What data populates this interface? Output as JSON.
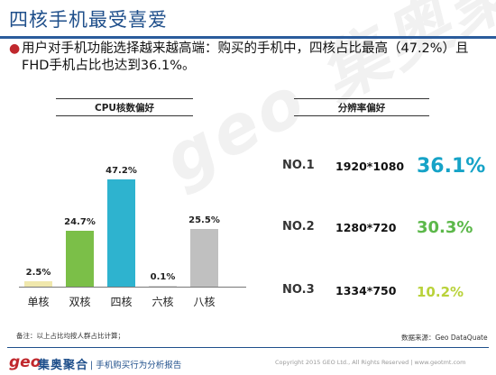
{
  "title": "四核手机最受喜爱",
  "bullet": "用户对手机功能选择越来越高端：购买的手机中，四核占比最高（47.2%）且FHD手机占比也达到36.1%。",
  "left_header": "CPU核数偏好",
  "right_header": "分辨率偏好",
  "watermark": "geo 集奥聚合",
  "chart_data": [
    {
      "type": "bar",
      "title": "CPU核数偏好",
      "categories": [
        "单核",
        "双核",
        "四核",
        "六核",
        "八核"
      ],
      "values": [
        2.5,
        24.7,
        47.2,
        0.1,
        25.5
      ],
      "value_labels": [
        "2.5%",
        "24.7%",
        "47.2%",
        "0.1%",
        "25.5%"
      ],
      "colors": [
        "#f0e8ad",
        "#7bbf48",
        "#2eb3cf",
        "#d9d9d9",
        "#c0c0c0"
      ],
      "ylim": [
        0,
        50
      ],
      "grid": false
    },
    {
      "type": "table",
      "title": "分辨率偏好",
      "rows": [
        {
          "rank": "NO.1",
          "resolution": "1920*1080",
          "value": 36.1,
          "label": "36.1%",
          "color": "#16a3c7"
        },
        {
          "rank": "NO.2",
          "resolution": "1280*720",
          "value": 30.3,
          "label": "30.3%",
          "color": "#5cb84a"
        },
        {
          "rank": "NO.3",
          "resolution": "1334*750",
          "value": 10.2,
          "label": "10.2%",
          "color": "#b9d23a"
        }
      ]
    }
  ],
  "footer": {
    "note": "备注：以上占比均按人群占比计算；",
    "source": "数据来源：Geo DataQuate",
    "logo_geo": "geo",
    "logo_cn": "集奥聚合",
    "logo_sub": "| 手机购买行为分析报告",
    "copyright": "Copyright 2015 GEO Ltd., All Rights Reserved  |  www.geotmt.com"
  }
}
